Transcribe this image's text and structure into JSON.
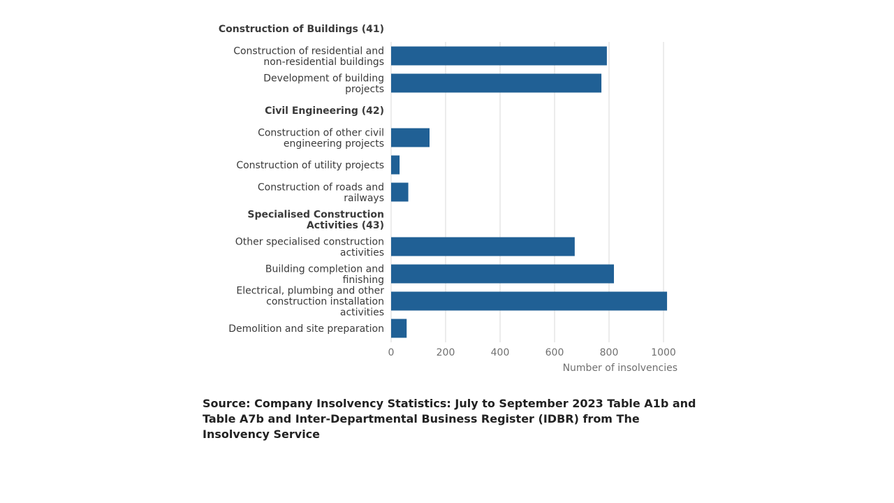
{
  "chart_data": {
    "type": "bar",
    "orientation": "horizontal",
    "title": "",
    "xlabel": "Number of insolvencies",
    "ylabel": "",
    "xlim": [
      0,
      1000
    ],
    "xticks": [
      "0",
      "200",
      "400",
      "600",
      "800",
      "1000"
    ],
    "grid": true,
    "colors": {
      "bar": "#206095"
    },
    "rows": [
      {
        "kind": "group",
        "label": [
          "Construction of Buildings (41)"
        ]
      },
      {
        "kind": "bar",
        "label": [
          "Construction of residential and",
          "non-residential buildings"
        ],
        "value": 792
      },
      {
        "kind": "bar",
        "label": [
          "Development of building",
          "projects"
        ],
        "value": 772
      },
      {
        "kind": "group",
        "label": [
          "Civil Engineering (42)"
        ]
      },
      {
        "kind": "bar",
        "label": [
          "Construction of other civil",
          "engineering projects"
        ],
        "value": 141
      },
      {
        "kind": "bar",
        "label": [
          "Construction of utility projects"
        ],
        "value": 31
      },
      {
        "kind": "bar",
        "label": [
          "Construction of roads and",
          "railways"
        ],
        "value": 63
      },
      {
        "kind": "group",
        "label": [
          "Specialised Construction",
          "Activities (43)"
        ]
      },
      {
        "kind": "bar",
        "label": [
          "Other specialised construction",
          "activities"
        ],
        "value": 674
      },
      {
        "kind": "bar",
        "label": [
          "Building completion and",
          "finishing"
        ],
        "value": 818
      },
      {
        "kind": "bar",
        "label": [
          "Electrical, plumbing and other",
          "construction installation",
          "activities"
        ],
        "value": 1013
      },
      {
        "kind": "bar",
        "label": [
          "Demolition and site preparation"
        ],
        "value": 57
      }
    ]
  },
  "source": {
    "text": "Source: Company Insolvency Statistics: July to September 2023 Table A1b and Table A7b and Inter-Departmental Business Register (IDBR) from The Insolvency Service"
  }
}
